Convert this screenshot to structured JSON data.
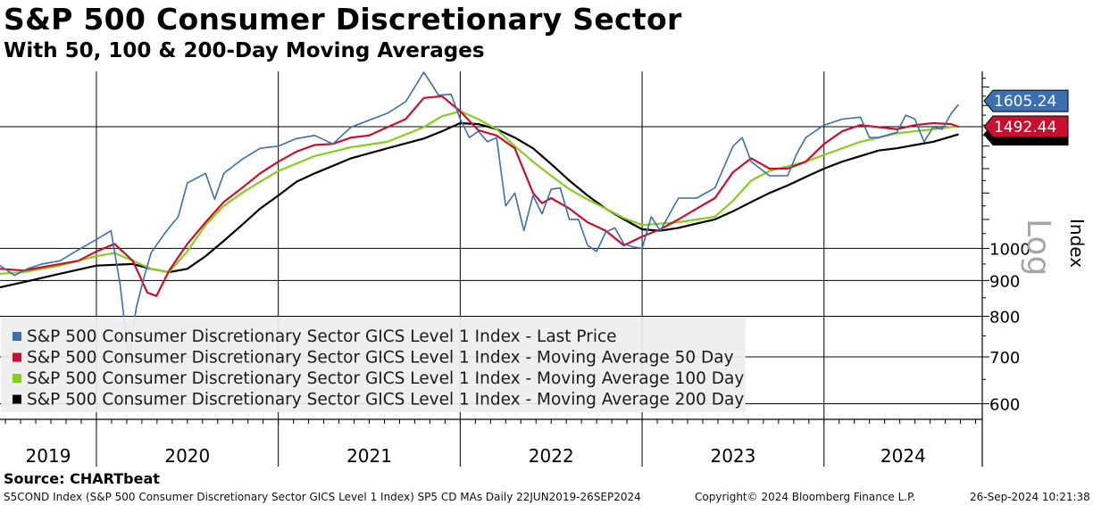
{
  "title": "S&P 500 Consumer Discretionary Sector",
  "subtitle": "With 50, 100 & 200-Day Moving Averages",
  "source": "Source: CHARTbeat",
  "footer": {
    "left": "S5COND Index (S&P 500 Consumer Discretionary Sector GICS Level 1 Index) SP5 CD MAs  Daily 22JUN2019-26SEP2024",
    "mid": "Copyright© 2024 Bloomberg Finance L.P.",
    "right": "26-Sep-2024 10:21:38"
  },
  "colors": {
    "last_price": "#3a6fb0",
    "ma50": "#c8102e",
    "ma100": "#84d01a",
    "ma200": "#000000",
    "legend_bg": "#eeeeee"
  },
  "chart_data": {
    "type": "line",
    "scale": "log",
    "ylabel": "Index",
    "scale_label": "Log",
    "yticks": [
      600,
      700,
      800,
      900,
      1000
    ],
    "ylim": [
      570,
      1790
    ],
    "xlim": [
      2019.47,
      2024.87
    ],
    "year_labels": [
      "2019",
      "2020",
      "2021",
      "2022",
      "2023",
      "2024"
    ],
    "year_boundaries": [
      2020,
      2021,
      2022,
      2023,
      2024
    ],
    "grid": true,
    "legend_position": "bottom-left",
    "last_values": {
      "last_price": "1605.24",
      "ma50": "1492.44"
    },
    "series": [
      {
        "name": "S&P 500 Consumer Discretionary Sector GICS Level 1 Index - Last Price",
        "key": "last_price",
        "x": [
          2019.47,
          2019.55,
          2019.62,
          2019.7,
          2019.8,
          2019.9,
          2020.0,
          2020.08,
          2020.13,
          2020.18,
          2020.2,
          2020.22,
          2020.26,
          2020.3,
          2020.38,
          2020.45,
          2020.5,
          2020.6,
          2020.65,
          2020.7,
          2020.8,
          2020.9,
          2021.0,
          2021.1,
          2021.2,
          2021.3,
          2021.4,
          2021.5,
          2021.6,
          2021.7,
          2021.8,
          2021.85,
          2021.88,
          2021.95,
          2022.0,
          2022.05,
          2022.1,
          2022.15,
          2022.2,
          2022.25,
          2022.3,
          2022.35,
          2022.4,
          2022.45,
          2022.5,
          2022.55,
          2022.6,
          2022.65,
          2022.7,
          2022.75,
          2022.8,
          2022.85,
          2022.9,
          2022.95,
          2023.0,
          2023.05,
          2023.1,
          2023.2,
          2023.3,
          2023.4,
          2023.5,
          2023.55,
          2023.6,
          2023.7,
          2023.8,
          2023.85,
          2023.9,
          2024.0,
          2024.1,
          2024.2,
          2024.25,
          2024.3,
          2024.4,
          2024.45,
          2024.5,
          2024.55,
          2024.6,
          2024.65,
          2024.7,
          2024.74
        ],
        "values": [
          945,
          915,
          935,
          950,
          960,
          995,
          1030,
          1060,
          890,
          690,
          765,
          825,
          905,
          985,
          1055,
          1110,
          1240,
          1280,
          1175,
          1280,
          1340,
          1390,
          1400,
          1435,
          1450,
          1410,
          1490,
          1525,
          1560,
          1620,
          1785,
          1705,
          1655,
          1660,
          1530,
          1440,
          1470,
          1420,
          1440,
          1150,
          1200,
          1060,
          1190,
          1120,
          1215,
          1220,
          1100,
          1100,
          1010,
          990,
          1055,
          1070,
          1015,
          1005,
          1000,
          1110,
          1060,
          1180,
          1180,
          1220,
          1400,
          1440,
          1330,
          1270,
          1270,
          1365,
          1440,
          1500,
          1530,
          1540,
          1440,
          1440,
          1465,
          1550,
          1530,
          1420,
          1490,
          1480,
          1560,
          1605
        ]
      },
      {
        "name": "S&P 500 Consumer Discretionary Sector GICS Level 1 Index - Moving Average 50 Day",
        "key": "ma50",
        "x": [
          2019.47,
          2019.6,
          2019.7,
          2019.8,
          2019.9,
          2020.0,
          2020.1,
          2020.2,
          2020.28,
          2020.33,
          2020.4,
          2020.5,
          2020.6,
          2020.7,
          2020.8,
          2020.9,
          2021.0,
          2021.1,
          2021.2,
          2021.3,
          2021.4,
          2021.5,
          2021.6,
          2021.7,
          2021.8,
          2021.9,
          2022.0,
          2022.1,
          2022.2,
          2022.3,
          2022.4,
          2022.45,
          2022.5,
          2022.6,
          2022.7,
          2022.8,
          2022.9,
          2023.0,
          2023.1,
          2023.2,
          2023.3,
          2023.4,
          2023.5,
          2023.6,
          2023.7,
          2023.8,
          2023.9,
          2024.0,
          2024.1,
          2024.2,
          2024.3,
          2024.4,
          2024.5,
          2024.6,
          2024.7,
          2024.74
        ],
        "values": [
          935,
          930,
          940,
          950,
          960,
          990,
          1015,
          960,
          865,
          855,
          930,
          1015,
          1090,
          1165,
          1220,
          1280,
          1330,
          1375,
          1405,
          1410,
          1440,
          1450,
          1490,
          1530,
          1640,
          1650,
          1570,
          1475,
          1450,
          1390,
          1200,
          1160,
          1180,
          1140,
          1090,
          1060,
          1010,
          1040,
          1065,
          1100,
          1140,
          1180,
          1285,
          1345,
          1300,
          1300,
          1330,
          1410,
          1470,
          1500,
          1490,
          1480,
          1500,
          1510,
          1505,
          1492
        ]
      },
      {
        "name": "S&P 500 Consumer Discretionary Sector GICS Level 1 Index - Moving Average 100 Day",
        "key": "ma100",
        "x": [
          2019.47,
          2019.6,
          2019.8,
          2020.0,
          2020.1,
          2020.2,
          2020.3,
          2020.4,
          2020.5,
          2020.6,
          2020.7,
          2020.8,
          2020.9,
          2021.0,
          2021.2,
          2021.4,
          2021.6,
          2021.8,
          2021.9,
          2022.0,
          2022.1,
          2022.2,
          2022.3,
          2022.4,
          2022.5,
          2022.6,
          2022.7,
          2022.8,
          2022.9,
          2023.0,
          2023.2,
          2023.4,
          2023.5,
          2023.6,
          2023.7,
          2023.8,
          2023.9,
          2024.0,
          2024.2,
          2024.4,
          2024.6,
          2024.74
        ],
        "values": [
          920,
          925,
          945,
          975,
          985,
          960,
          935,
          925,
          990,
          1080,
          1150,
          1200,
          1245,
          1290,
          1355,
          1395,
          1420,
          1490,
          1545,
          1570,
          1530,
          1480,
          1400,
          1330,
          1270,
          1215,
          1175,
          1140,
          1105,
          1080,
          1090,
          1110,
          1170,
          1250,
          1290,
          1310,
          1330,
          1360,
          1420,
          1460,
          1480,
          1495
        ]
      },
      {
        "name": "S&P 500 Consumer Discretionary Sector GICS Level 1 Index - Moving Average 200 Day",
        "key": "ma200",
        "x": [
          2019.47,
          2019.6,
          2019.8,
          2020.0,
          2020.2,
          2020.3,
          2020.4,
          2020.5,
          2020.6,
          2020.7,
          2020.8,
          2020.9,
          2021.0,
          2021.1,
          2021.2,
          2021.4,
          2021.6,
          2021.8,
          2021.9,
          2022.0,
          2022.1,
          2022.2,
          2022.3,
          2022.4,
          2022.5,
          2022.6,
          2022.7,
          2022.8,
          2022.9,
          2023.0,
          2023.1,
          2023.2,
          2023.3,
          2023.4,
          2023.5,
          2023.6,
          2023.7,
          2023.8,
          2023.9,
          2024.0,
          2024.1,
          2024.2,
          2024.3,
          2024.4,
          2024.5,
          2024.6,
          2024.74
        ],
        "values": [
          880,
          895,
          920,
          945,
          950,
          935,
          925,
          935,
          975,
          1025,
          1080,
          1140,
          1190,
          1245,
          1280,
          1345,
          1390,
          1435,
          1470,
          1510,
          1505,
          1480,
          1440,
          1390,
          1320,
          1250,
          1190,
          1140,
          1100,
          1065,
          1060,
          1070,
          1085,
          1100,
          1130,
          1165,
          1200,
          1230,
          1265,
          1300,
          1330,
          1355,
          1380,
          1390,
          1405,
          1420,
          1455
        ]
      }
    ]
  }
}
